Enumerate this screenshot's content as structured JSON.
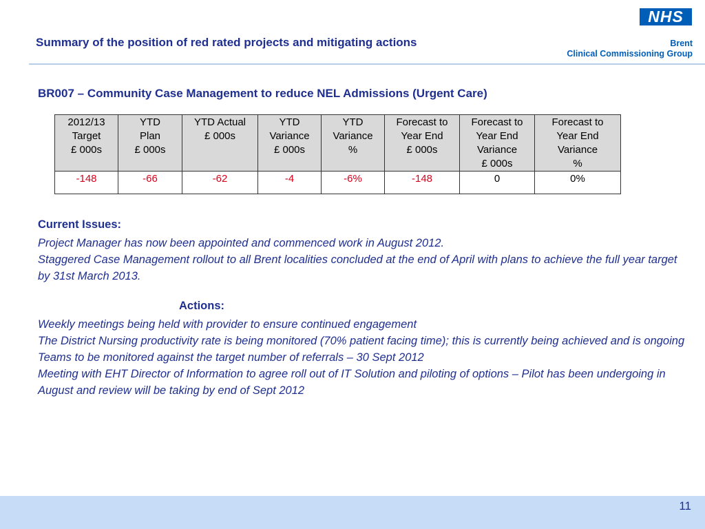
{
  "header": {
    "title": "Summary of the position of red rated projects and mitigating actions",
    "logo_text": "NHS",
    "org_line1": "Brent",
    "org_line2": "Clinical Commissioning Group"
  },
  "project": {
    "heading": "BR007 – Community Case Management to reduce NEL Admissions (Urgent Care)"
  },
  "table": {
    "headers": [
      "2012/13\nTarget\n£ 000s",
      "YTD\nPlan\n£ 000s",
      "YTD Actual\n£ 000s",
      "YTD\nVariance\n£ 000s",
      "YTD\nVariance\n%",
      "Forecast to\nYear End\n£ 000s",
      "Forecast to\nYear End\nVariance\n£ 000s",
      "Forecast to\nYear End\nVariance\n%"
    ],
    "values": [
      "-148",
      "-66",
      "-62",
      "-4",
      "-6%",
      "-148",
      "0",
      "0%"
    ]
  },
  "issues": {
    "heading": "Current Issues:",
    "lines": [
      "Project Manager has now been appointed and commenced work in August 2012.",
      "Staggered Case Management rollout to all Brent localities concluded at the end of April with plans to achieve the full year target by 31st March 2013."
    ]
  },
  "actions": {
    "heading": "Actions:",
    "lines": [
      "Weekly meetings being held with provider to ensure continued engagement",
      "The District Nursing productivity rate is being monitored (70% patient facing time); this is currently being achieved and is ongoing",
      "Teams to be monitored against the target number of referrals – 30 Sept 2012",
      "Meeting with EHT Director of Information to agree roll out of IT Solution and piloting of options – Pilot has been undergoing in August and review will be taking by end of Sept 2012"
    ]
  },
  "footer": {
    "page_number": "11"
  },
  "colors": {
    "title_blue": "#1f2f8f",
    "nhs_blue": "#005eb8",
    "negative_red": "#d9001b",
    "footer_band": "#c6dcf7"
  }
}
